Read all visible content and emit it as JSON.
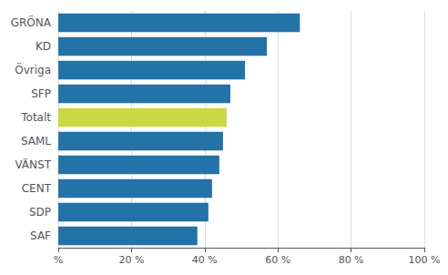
{
  "chart_data": {
    "type": "bar",
    "orientation": "horizontal",
    "categories": [
      "GRÖNA",
      "KD",
      "Övriga",
      "SFP",
      "Totalt",
      "SAML",
      "VÄNST",
      "CENT",
      "SDP",
      "SAF"
    ],
    "values": [
      66,
      57,
      51,
      47,
      46,
      45,
      44,
      42,
      41,
      38
    ],
    "colors": [
      "#2372a8",
      "#2372a8",
      "#2372a8",
      "#2372a8",
      "#c8d943",
      "#2372a8",
      "#2372a8",
      "#2372a8",
      "#2372a8",
      "#2372a8"
    ],
    "xlim": [
      0,
      100
    ],
    "xticks": [
      {
        "value": 0,
        "label": "%"
      },
      {
        "value": 20,
        "label": "20 %"
      },
      {
        "value": 40,
        "label": "40 %"
      },
      {
        "value": 60,
        "label": "60 %"
      },
      {
        "value": 80,
        "label": "80 %"
      },
      {
        "value": 100,
        "label": "100 %"
      }
    ],
    "grid": true
  }
}
